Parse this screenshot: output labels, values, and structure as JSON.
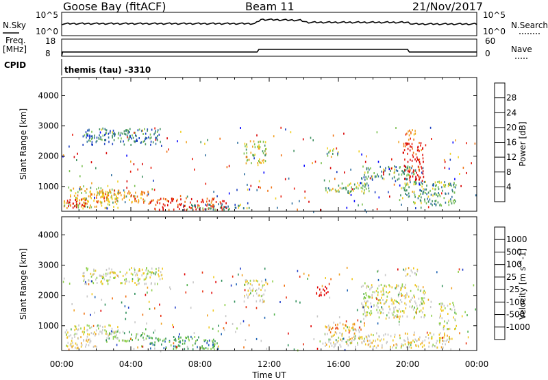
{
  "header": {
    "station": "Goose Bay (fitACF)",
    "beam": "Beam 11",
    "date": "21/Nov/2017"
  },
  "noise_panel": {
    "left_label": "N.Sky",
    "right_label": "N.Search",
    "left_ticks": [
      "10^5",
      "10^0"
    ],
    "right_ticks": [
      "10^5",
      "10^0"
    ]
  },
  "freq_panel": {
    "left_label_1": "Freq.",
    "left_label_2": "[MHz]",
    "right_label": "Nave",
    "left_ticks": [
      "18",
      "8"
    ],
    "right_ticks": [
      "60",
      "0"
    ]
  },
  "cpid": {
    "label": "CPID",
    "mode": "themis (tau) -3310"
  },
  "colorbar_power": {
    "label": "Power [dB]",
    "ticks": [
      "28",
      "24",
      "20",
      "16",
      "12",
      "8",
      "4"
    ],
    "colors": [
      "#0000ff",
      "#1a3fc0",
      "#2f6fa0",
      "#3f9060",
      "#7ac050",
      "#f0d020",
      "#f0a020",
      "#f07010",
      "#e82010",
      "#d80000"
    ]
  },
  "colorbar_velocity": {
    "label": "Velocity [m s^-1]",
    "ticks": [
      "1000",
      "500",
      "100",
      "25",
      "-25",
      "-100",
      "-500",
      "-1000"
    ],
    "colors": [
      "#1e3cc8",
      "#1e64b4",
      "#2f8f5a",
      "#4fb04a",
      "#8fd04a",
      "#c8c8c8",
      "#c8c8c8",
      "#f0c820",
      "#f0a020",
      "#f07010",
      "#e83010",
      "#e00000"
    ]
  },
  "chart_data": [
    {
      "type": "line",
      "name": "noise",
      "x_range_hours": [
        0,
        24
      ],
      "segments": [
        {
          "x": [
            0,
            0.5,
            11.2,
            11.5,
            13.8,
            14.2,
            20.0,
            20.3,
            24
          ],
          "y": [
            2.5,
            2.6,
            2.6,
            3.6,
            3.4,
            2.9,
            2.9,
            2.5,
            2.5
          ]
        }
      ]
    },
    {
      "type": "line",
      "name": "frequency",
      "x_range_hours": [
        0,
        24
      ],
      "ylim": [
        8,
        18
      ],
      "x": [
        0,
        0.05,
        0.1,
        11.3,
        11.4,
        20.0,
        20.1,
        24
      ],
      "y": [
        8,
        10.5,
        10.5,
        10.5,
        12,
        12,
        10.5,
        10.5
      ]
    },
    {
      "type": "heatmap",
      "name": "power",
      "xlabel": "",
      "ylabel": "Slant Range [km]",
      "x_ticks": [
        "00:00",
        "04:00",
        "08:00",
        "12:00",
        "16:00",
        "20:00",
        "00:00"
      ],
      "y_ticks": [
        1000,
        2000,
        3000,
        4000
      ],
      "xlim_hours": [
        0,
        24
      ],
      "ylim_km": [
        180,
        4600
      ],
      "regions": [
        {
          "t0": 0.1,
          "t1": 3.3,
          "r0": 300,
          "r1": 1050,
          "level": 0.55
        },
        {
          "t0": 0.3,
          "t1": 1.4,
          "r0": 300,
          "r1": 650,
          "level": 0.95
        },
        {
          "t0": 1.2,
          "t1": 5.0,
          "r0": 500,
          "r1": 900,
          "level": 0.65
        },
        {
          "t0": 1.2,
          "t1": 5.8,
          "r0": 2400,
          "r1": 2950,
          "level": 0.3
        },
        {
          "t0": 5.0,
          "t1": 9.5,
          "r0": 250,
          "r1": 650,
          "level": 0.85
        },
        {
          "t0": 7.0,
          "t1": 11.0,
          "r0": 250,
          "r1": 450,
          "level": 0.35
        },
        {
          "t0": 10.5,
          "t1": 11.8,
          "r0": 1800,
          "r1": 2550,
          "level": 0.55
        },
        {
          "t0": 15.3,
          "t1": 16.0,
          "r0": 2000,
          "r1": 2300,
          "level": 0.45
        },
        {
          "t0": 15.2,
          "t1": 17.8,
          "r0": 800,
          "r1": 1150,
          "level": 0.45
        },
        {
          "t0": 17.3,
          "t1": 20.8,
          "r0": 1250,
          "r1": 1700,
          "level": 0.35
        },
        {
          "t0": 19.7,
          "t1": 20.9,
          "r0": 1200,
          "r1": 2500,
          "level": 0.9
        },
        {
          "t0": 19.5,
          "t1": 22.8,
          "r0": 400,
          "r1": 1200,
          "level": 0.4
        },
        {
          "t0": 19.8,
          "t1": 20.5,
          "r0": 2550,
          "r1": 2900,
          "level": 0.7
        }
      ]
    },
    {
      "type": "heatmap",
      "name": "velocity",
      "xlabel": "Time UT",
      "ylabel": "Slant Range [km]",
      "x_ticks": [
        "00:00",
        "04:00",
        "08:00",
        "12:00",
        "16:00",
        "20:00",
        "00:00"
      ],
      "y_ticks": [
        1000,
        2000,
        3000,
        4000
      ],
      "xlim_hours": [
        0,
        24
      ],
      "ylim_km": [
        180,
        4600
      ],
      "regions": [
        {
          "t0": 0.1,
          "t1": 3.3,
          "r0": 700,
          "r1": 1050,
          "level": 0.5
        },
        {
          "t0": 0.2,
          "t1": 2.0,
          "r0": 300,
          "r1": 700,
          "level": 0.6
        },
        {
          "t0": 1.2,
          "t1": 5.8,
          "r0": 2400,
          "r1": 2950,
          "level": 0.5
        },
        {
          "t0": 2.5,
          "t1": 5.0,
          "r0": 500,
          "r1": 850,
          "level": 0.35
        },
        {
          "t0": 5.0,
          "t1": 9.0,
          "r0": 250,
          "r1": 700,
          "level": 0.25
        },
        {
          "t0": 10.5,
          "t1": 11.8,
          "r0": 1800,
          "r1": 2550,
          "level": 0.5
        },
        {
          "t0": 14.7,
          "t1": 15.4,
          "r0": 2000,
          "r1": 2400,
          "level": 0.9
        },
        {
          "t0": 15.2,
          "t1": 17.5,
          "r0": 800,
          "r1": 1150,
          "level": 0.7
        },
        {
          "t0": 17.3,
          "t1": 21.0,
          "r0": 1250,
          "r1": 2400,
          "level": 0.5
        },
        {
          "t0": 19.8,
          "t1": 20.6,
          "r0": 2600,
          "r1": 2950,
          "level": 0.5
        },
        {
          "t0": 21.8,
          "t1": 22.8,
          "r0": 900,
          "r1": 1800,
          "level": 0.5
        },
        {
          "t0": 15.0,
          "t1": 22.5,
          "r0": 300,
          "r1": 800,
          "level": 0.55
        }
      ]
    }
  ]
}
